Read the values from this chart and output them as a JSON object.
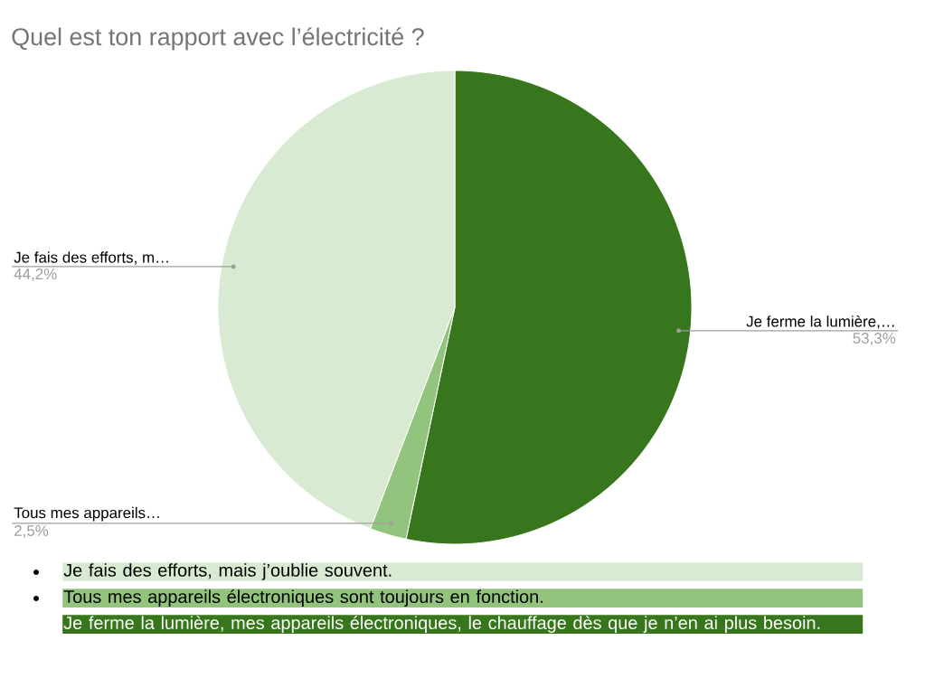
{
  "chart_data": {
    "type": "pie",
    "title": "Quel est ton rapport avec l’électricité ?",
    "categories": [
      "Je ferme la lumière,…",
      "Tous mes appareils…",
      "Je fais des efforts, m…"
    ],
    "values": [
      53.3,
      2.5,
      44.2
    ],
    "colors": [
      "#38761d",
      "#93c47d",
      "#d9ead3"
    ],
    "value_labels": [
      "53,3%",
      "2,5%",
      "44,2%"
    ],
    "annotations": [
      "Je fais des efforts, mais j’oublie souvent.",
      "Tous mes appareils électroniques sont toujours en fonction.",
      "Je ferme la lumière, mes appareils électroniques, le chauffage dès que je n’en ai plus besoin."
    ]
  }
}
